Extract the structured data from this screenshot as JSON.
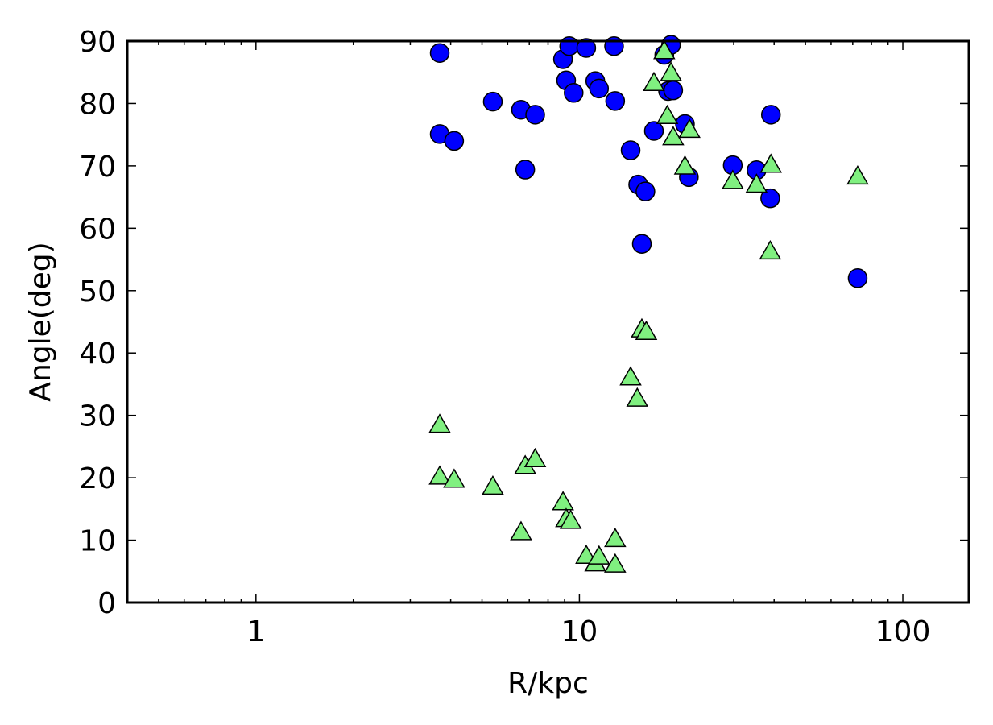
{
  "chart_data": {
    "type": "scatter",
    "title": "",
    "xlabel": "R/kpc",
    "ylabel": "Angle(deg)",
    "xscale": "log",
    "xlim": [
      0.4,
      160
    ],
    "ylim": [
      0,
      90
    ],
    "xticks": [
      {
        "value": 1,
        "label": "1"
      },
      {
        "value": 10,
        "label": "10"
      },
      {
        "value": 100,
        "label": "100"
      }
    ],
    "yticks": [
      {
        "value": 0,
        "label": "0"
      },
      {
        "value": 10,
        "label": "10"
      },
      {
        "value": 20,
        "label": "20"
      },
      {
        "value": 30,
        "label": "30"
      },
      {
        "value": 40,
        "label": "40"
      },
      {
        "value": 50,
        "label": "50"
      },
      {
        "value": 60,
        "label": "60"
      },
      {
        "value": 70,
        "label": "70"
      },
      {
        "value": 80,
        "label": "80"
      },
      {
        "value": 90,
        "label": "90"
      }
    ],
    "grid": false,
    "legend": "none",
    "series": [
      {
        "marker": "circle",
        "color": "#0000ff",
        "points": [
          {
            "x": 3.7,
            "y": 88.1
          },
          {
            "x": 3.7,
            "y": 75.1
          },
          {
            "x": 4.1,
            "y": 74.0
          },
          {
            "x": 5.4,
            "y": 80.3
          },
          {
            "x": 6.6,
            "y": 79.0
          },
          {
            "x": 6.8,
            "y": 69.4
          },
          {
            "x": 7.3,
            "y": 78.2
          },
          {
            "x": 8.9,
            "y": 87.1
          },
          {
            "x": 9.1,
            "y": 83.7
          },
          {
            "x": 9.3,
            "y": 89.2
          },
          {
            "x": 9.6,
            "y": 81.7
          },
          {
            "x": 10.5,
            "y": 88.9
          },
          {
            "x": 11.2,
            "y": 83.6
          },
          {
            "x": 11.5,
            "y": 82.4
          },
          {
            "x": 12.8,
            "y": 89.2
          },
          {
            "x": 12.9,
            "y": 80.4
          },
          {
            "x": 14.4,
            "y": 72.5
          },
          {
            "x": 15.2,
            "y": 67.0
          },
          {
            "x": 15.6,
            "y": 57.5
          },
          {
            "x": 16.0,
            "y": 65.9
          },
          {
            "x": 17.0,
            "y": 75.6
          },
          {
            "x": 18.3,
            "y": 87.8
          },
          {
            "x": 18.8,
            "y": 82.0
          },
          {
            "x": 19.2,
            "y": 89.4
          },
          {
            "x": 19.5,
            "y": 82.1
          },
          {
            "x": 21.2,
            "y": 76.7
          },
          {
            "x": 21.8,
            "y": 68.2
          },
          {
            "x": 29.8,
            "y": 70.1
          },
          {
            "x": 35.3,
            "y": 69.3
          },
          {
            "x": 38.9,
            "y": 64.8
          },
          {
            "x": 39.1,
            "y": 78.2
          },
          {
            "x": 72.5,
            "y": 52.0
          }
        ]
      },
      {
        "marker": "triangle",
        "color": "#80f080",
        "points": [
          {
            "x": 3.7,
            "y": 28.5
          },
          {
            "x": 3.7,
            "y": 20.2
          },
          {
            "x": 4.1,
            "y": 19.7
          },
          {
            "x": 5.4,
            "y": 18.6
          },
          {
            "x": 6.6,
            "y": 11.3
          },
          {
            "x": 6.8,
            "y": 21.9
          },
          {
            "x": 7.3,
            "y": 23.0
          },
          {
            "x": 8.9,
            "y": 16.1
          },
          {
            "x": 9.1,
            "y": 13.4
          },
          {
            "x": 9.4,
            "y": 13.1
          },
          {
            "x": 10.5,
            "y": 7.5
          },
          {
            "x": 11.2,
            "y": 6.3
          },
          {
            "x": 11.5,
            "y": 7.4
          },
          {
            "x": 12.9,
            "y": 10.2
          },
          {
            "x": 12.9,
            "y": 6.1
          },
          {
            "x": 14.4,
            "y": 36.1
          },
          {
            "x": 15.1,
            "y": 32.7
          },
          {
            "x": 15.6,
            "y": 43.8
          },
          {
            "x": 16.1,
            "y": 43.4
          },
          {
            "x": 17.0,
            "y": 83.3
          },
          {
            "x": 18.3,
            "y": 88.4
          },
          {
            "x": 18.7,
            "y": 78.0
          },
          {
            "x": 19.2,
            "y": 84.9
          },
          {
            "x": 19.5,
            "y": 74.6
          },
          {
            "x": 21.2,
            "y": 69.9
          },
          {
            "x": 21.9,
            "y": 75.8
          },
          {
            "x": 29.8,
            "y": 67.6
          },
          {
            "x": 35.3,
            "y": 67.0
          },
          {
            "x": 38.9,
            "y": 56.3
          },
          {
            "x": 39.1,
            "y": 70.2
          },
          {
            "x": 72.5,
            "y": 68.3
          }
        ]
      }
    ]
  }
}
